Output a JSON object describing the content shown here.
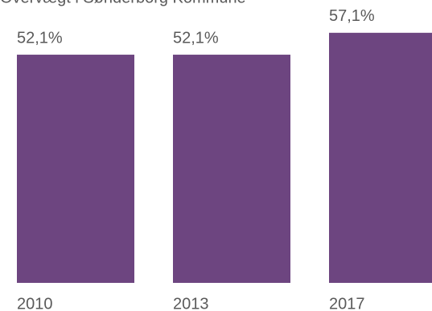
{
  "chart_data": {
    "type": "bar",
    "title": "Overvægt i Sønderborg Kommune",
    "categories": [
      "2010",
      "2013",
      "2017"
    ],
    "values": [
      52.1,
      52.1,
      57.1
    ],
    "value_labels": [
      "52,1%",
      "52,1%",
      "57,1%"
    ],
    "color": "#6d4580",
    "ylim": [
      0,
      60
    ]
  }
}
